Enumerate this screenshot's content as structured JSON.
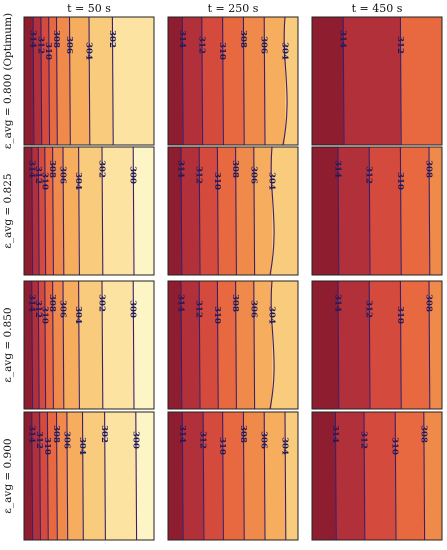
{
  "figure": {
    "column_titles": [
      "t = 50 s",
      "t = 250 s",
      "t = 450 s"
    ],
    "row_titles": [
      "ε_avg = 0.800 (Optimum)",
      "ε_avg = 0.825",
      "ε_avg = 0.850",
      "ε_avg = 0.900"
    ]
  },
  "chart_data": {
    "type": "heatmap",
    "description_free": true,
    "grid": "4x3 contour panels",
    "colormap": [
      "#8e1d30",
      "#b2303a",
      "#d44a3c",
      "#e8683f",
      "#f08a4b",
      "#f6ad5e",
      "#f9cb7c",
      "#fce3a2",
      "#fef5c7"
    ],
    "panels": [
      {
        "row": 0,
        "col": 0,
        "contours": [
          {
            "level": 314,
            "x": 0.07
          },
          {
            "level": 312,
            "x": 0.13
          },
          {
            "level": 310,
            "x": 0.19
          },
          {
            "level": 308,
            "x": 0.25
          },
          {
            "level": 306,
            "x": 0.35
          },
          {
            "level": 304,
            "x": 0.5
          },
          {
            "level": 302,
            "x": 0.68
          }
        ]
      },
      {
        "row": 0,
        "col": 1,
        "contours": [
          {
            "level": 314,
            "x": 0.11
          },
          {
            "level": 312,
            "x": 0.26
          },
          {
            "level": 310,
            "x": 0.42
          },
          {
            "level": 308,
            "x": 0.58
          },
          {
            "level": 306,
            "x": 0.74
          },
          {
            "level": 304,
            "x": 0.9
          }
        ]
      },
      {
        "row": 0,
        "col": 2,
        "contours": [
          {
            "level": 314,
            "x": 0.24
          },
          {
            "level": 312,
            "x": 0.68
          }
        ]
      },
      {
        "row": 1,
        "col": 0,
        "contours": [
          {
            "level": 314,
            "x": 0.06
          },
          {
            "level": 312,
            "x": 0.11
          },
          {
            "level": 310,
            "x": 0.16
          },
          {
            "level": 308,
            "x": 0.22
          },
          {
            "level": 306,
            "x": 0.3
          },
          {
            "level": 304,
            "x": 0.42
          },
          {
            "level": 302,
            "x": 0.6
          },
          {
            "level": 300,
            "x": 0.84
          }
        ]
      },
      {
        "row": 1,
        "col": 1,
        "contours": [
          {
            "level": 314,
            "x": 0.1
          },
          {
            "level": 312,
            "x": 0.24
          },
          {
            "level": 310,
            "x": 0.38
          },
          {
            "level": 308,
            "x": 0.52
          },
          {
            "level": 306,
            "x": 0.66
          },
          {
            "level": 304,
            "x": 0.8
          }
        ]
      },
      {
        "row": 1,
        "col": 2,
        "contours": [
          {
            "level": 314,
            "x": 0.2
          },
          {
            "level": 312,
            "x": 0.44
          },
          {
            "level": 310,
            "x": 0.68
          },
          {
            "level": 308,
            "x": 0.9
          }
        ]
      },
      {
        "row": 2,
        "col": 0,
        "contours": [
          {
            "level": 314,
            "x": 0.06
          },
          {
            "level": 312,
            "x": 0.11
          },
          {
            "level": 310,
            "x": 0.16
          },
          {
            "level": 308,
            "x": 0.22
          },
          {
            "level": 306,
            "x": 0.3
          },
          {
            "level": 304,
            "x": 0.42
          },
          {
            "level": 302,
            "x": 0.6
          },
          {
            "level": 300,
            "x": 0.84
          }
        ]
      },
      {
        "row": 2,
        "col": 1,
        "contours": [
          {
            "level": 314,
            "x": 0.1
          },
          {
            "level": 312,
            "x": 0.24
          },
          {
            "level": 310,
            "x": 0.38
          },
          {
            "level": 308,
            "x": 0.52
          },
          {
            "level": 306,
            "x": 0.66
          },
          {
            "level": 304,
            "x": 0.8
          }
        ]
      },
      {
        "row": 2,
        "col": 2,
        "contours": [
          {
            "level": 314,
            "x": 0.2
          },
          {
            "level": 312,
            "x": 0.44
          },
          {
            "level": 310,
            "x": 0.68
          },
          {
            "level": 308,
            "x": 0.9
          }
        ]
      },
      {
        "row": 3,
        "col": 0,
        "contours": [
          {
            "level": 314,
            "x": 0.06
          },
          {
            "level": 312,
            "x": 0.12
          },
          {
            "level": 310,
            "x": 0.18
          },
          {
            "level": 308,
            "x": 0.25
          },
          {
            "level": 306,
            "x": 0.33
          },
          {
            "level": 304,
            "x": 0.45
          },
          {
            "level": 302,
            "x": 0.62
          },
          {
            "level": 300,
            "x": 0.86
          }
        ]
      },
      {
        "row": 3,
        "col": 1,
        "contours": [
          {
            "level": 314,
            "x": 0.11
          },
          {
            "level": 312,
            "x": 0.27
          },
          {
            "level": 310,
            "x": 0.42
          },
          {
            "level": 308,
            "x": 0.58
          },
          {
            "level": 306,
            "x": 0.74
          },
          {
            "level": 304,
            "x": 0.9
          }
        ]
      },
      {
        "row": 3,
        "col": 2,
        "contours": [
          {
            "level": 314,
            "x": 0.18
          },
          {
            "level": 312,
            "x": 0.4
          },
          {
            "level": 310,
            "x": 0.64
          },
          {
            "level": 308,
            "x": 0.86
          }
        ]
      }
    ]
  }
}
